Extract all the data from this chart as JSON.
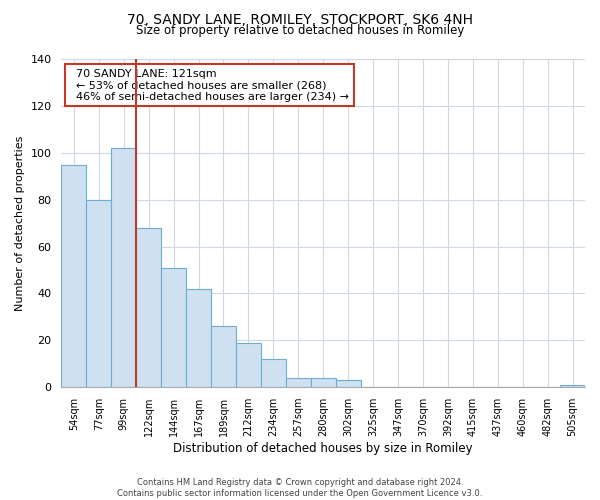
{
  "title": "70, SANDY LANE, ROMILEY, STOCKPORT, SK6 4NH",
  "subtitle": "Size of property relative to detached houses in Romiley",
  "xlabel": "Distribution of detached houses by size in Romiley",
  "ylabel": "Number of detached properties",
  "bin_labels": [
    "54sqm",
    "77sqm",
    "99sqm",
    "122sqm",
    "144sqm",
    "167sqm",
    "189sqm",
    "212sqm",
    "234sqm",
    "257sqm",
    "280sqm",
    "302sqm",
    "325sqm",
    "347sqm",
    "370sqm",
    "392sqm",
    "415sqm",
    "437sqm",
    "460sqm",
    "482sqm",
    "505sqm"
  ],
  "bar_heights": [
    95,
    80,
    102,
    68,
    51,
    42,
    26,
    19,
    12,
    4,
    4,
    3,
    0,
    0,
    0,
    0,
    0,
    0,
    0,
    0,
    1
  ],
  "bar_color": "#cfe0f0",
  "bar_edge_color": "#6aaed6",
  "vline_x_index": 3,
  "vline_color": "#c0392b",
  "ylim": [
    0,
    140
  ],
  "yticks": [
    0,
    20,
    40,
    60,
    80,
    100,
    120,
    140
  ],
  "annotation_title": "70 SANDY LANE: 121sqm",
  "annotation_line1": "← 53% of detached houses are smaller (268)",
  "annotation_line2": "46% of semi-detached houses are larger (234) →",
  "annotation_box_color": "#ffffff",
  "annotation_box_edge_color": "#c0392b",
  "footer_line1": "Contains HM Land Registry data © Crown copyright and database right 2024.",
  "footer_line2": "Contains public sector information licensed under the Open Government Licence v3.0.",
  "background_color": "#ffffff",
  "grid_color": "#d0d8e8"
}
